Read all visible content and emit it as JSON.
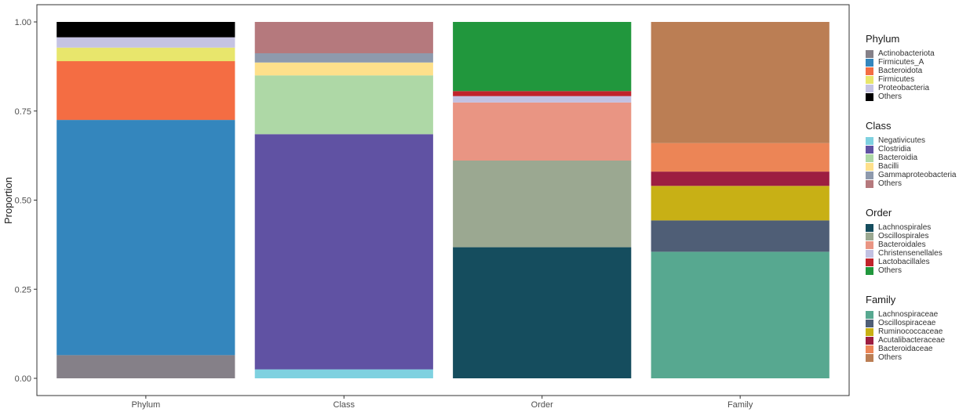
{
  "chart_data": {
    "type": "bar",
    "stacked": true,
    "categories": [
      "Phylum",
      "Class",
      "Order",
      "Family"
    ],
    "ylabel": "Proportion",
    "xlabel": "",
    "ylim": [
      0,
      1
    ],
    "yticks": [
      "0.00",
      "0.25",
      "0.50",
      "0.75",
      "1.00"
    ],
    "grid": false,
    "legend_position": "right",
    "stacks": [
      {
        "category": "Phylum",
        "segments": [
          {
            "name": "Actinobacteriota",
            "value": 0.065,
            "color": "#858088"
          },
          {
            "name": "Firmicutes_A",
            "value": 0.66,
            "color": "#3486bd"
          },
          {
            "name": "Bacteroidota",
            "value": 0.165,
            "color": "#f46d43"
          },
          {
            "name": "Firmicutes",
            "value": 0.038,
            "color": "#e8e66c"
          },
          {
            "name": "Proteobacteria",
            "value": 0.029,
            "color": "#c5c3e3"
          },
          {
            "name": "Others",
            "value": 0.043,
            "color": "#000000"
          }
        ]
      },
      {
        "category": "Class",
        "segments": [
          {
            "name": "Negativicutes",
            "value": 0.025,
            "color": "#7fd1e0"
          },
          {
            "name": "Clostridia",
            "value": 0.66,
            "color": "#6052a3"
          },
          {
            "name": "Bacteroidia",
            "value": 0.165,
            "color": "#aed8a6"
          },
          {
            "name": "Bacilli",
            "value": 0.036,
            "color": "#fee08b"
          },
          {
            "name": "Gammaproteobacteria",
            "value": 0.026,
            "color": "#8e9aad"
          },
          {
            "name": "Others",
            "value": 0.088,
            "color": "#b5797d"
          }
        ]
      },
      {
        "category": "Order",
        "segments": [
          {
            "name": "Lachnospirales",
            "value": 0.368,
            "color": "#154d5e"
          },
          {
            "name": "Oscillospirales",
            "value": 0.243,
            "color": "#9ba891"
          },
          {
            "name": "Bacteroidales",
            "value": 0.163,
            "color": "#e99583"
          },
          {
            "name": "Christensenellales",
            "value": 0.018,
            "color": "#c2c1e2"
          },
          {
            "name": "Lactobacillales",
            "value": 0.014,
            "color": "#c1232b"
          },
          {
            "name": "Others",
            "value": 0.194,
            "color": "#21973d"
          }
        ]
      },
      {
        "category": "Family",
        "segments": [
          {
            "name": "Lachnospiraceae",
            "value": 0.355,
            "color": "#57a890"
          },
          {
            "name": "Oscillospiraceae",
            "value": 0.088,
            "color": "#4f5e76"
          },
          {
            "name": "Ruminococcaceae",
            "value": 0.097,
            "color": "#c8b015"
          },
          {
            "name": "Acutalibacteraceae",
            "value": 0.04,
            "color": "#9d1d41"
          },
          {
            "name": "Bacteroidaceae",
            "value": 0.08,
            "color": "#ec8556"
          },
          {
            "name": "Others",
            "value": 0.34,
            "color": "#bb7e54"
          }
        ]
      }
    ]
  },
  "legends": [
    {
      "title": "Phylum",
      "items": [
        {
          "label": "Actinobacteriota",
          "color": "#858088"
        },
        {
          "label": "Firmicutes_A",
          "color": "#3486bd"
        },
        {
          "label": "Bacteroidota",
          "color": "#f46d43"
        },
        {
          "label": "Firmicutes",
          "color": "#e8e66c"
        },
        {
          "label": "Proteobacteria",
          "color": "#c5c3e3"
        },
        {
          "label": "Others",
          "color": "#000000"
        }
      ]
    },
    {
      "title": "Class",
      "items": [
        {
          "label": "Negativicutes",
          "color": "#7fd1e0"
        },
        {
          "label": "Clostridia",
          "color": "#6052a3"
        },
        {
          "label": "Bacteroidia",
          "color": "#aed8a6"
        },
        {
          "label": "Bacilli",
          "color": "#fee08b"
        },
        {
          "label": "Gammaproteobacteria",
          "color": "#8e9aad"
        },
        {
          "label": "Others",
          "color": "#b5797d"
        }
      ]
    },
    {
      "title": "Order",
      "items": [
        {
          "label": "Lachnospirales",
          "color": "#154d5e"
        },
        {
          "label": "Oscillospirales",
          "color": "#9ba891"
        },
        {
          "label": "Bacteroidales",
          "color": "#e99583"
        },
        {
          "label": "Christensenellales",
          "color": "#c2c1e2"
        },
        {
          "label": "Lactobacillales",
          "color": "#c1232b"
        },
        {
          "label": "Others",
          "color": "#21973d"
        }
      ]
    },
    {
      "title": "Family",
      "items": [
        {
          "label": "Lachnospiraceae",
          "color": "#57a890"
        },
        {
          "label": "Oscillospiraceae",
          "color": "#4f5e76"
        },
        {
          "label": "Ruminococcaceae",
          "color": "#c8b015"
        },
        {
          "label": "Acutalibacteraceae",
          "color": "#9d1d41"
        },
        {
          "label": "Bacteroidaceae",
          "color": "#ec8556"
        },
        {
          "label": "Others",
          "color": "#bb7e54"
        }
      ]
    }
  ]
}
